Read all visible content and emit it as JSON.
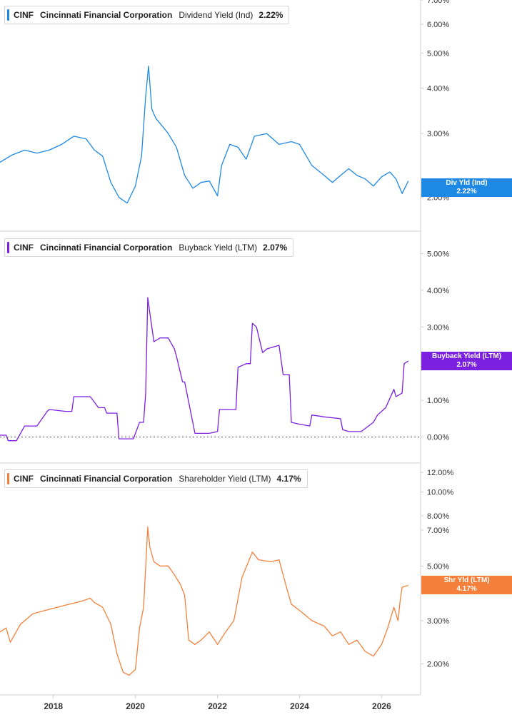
{
  "chart_data": [
    {
      "type": "line",
      "ticker": "CINF",
      "company": "Cincinnati Financial Corporation",
      "metric": "Dividend Yield (Ind)",
      "current_value": "2.22%",
      "tag_label": "Div Yld (Ind)",
      "tag_value": "2.22%",
      "color": "#1e88e5",
      "yscale": "log",
      "ylim": [
        1.8,
        7.0
      ],
      "y_ticks": [
        2,
        3,
        4,
        5,
        6,
        7
      ],
      "y_tick_labels": [
        "2.00%",
        "3.00%",
        "4.00%",
        "5.00%",
        "6.00%",
        "7.00%"
      ],
      "series": [
        {
          "x": [
            2016.7,
            2017.0,
            2017.3,
            2017.6,
            2017.9,
            2018.2,
            2018.5,
            2018.8,
            2019.0,
            2019.2,
            2019.4,
            2019.6,
            2019.8,
            2020.0,
            2020.15,
            2020.25,
            2020.32,
            2020.4,
            2020.5,
            2020.65,
            2020.8,
            2021.0,
            2021.2,
            2021.4,
            2021.6,
            2021.8,
            2022.0,
            2022.1,
            2022.3,
            2022.5,
            2022.7,
            2022.9,
            2023.2,
            2023.5,
            2023.8,
            2024.0,
            2024.3,
            2024.6,
            2024.8,
            2025.0,
            2025.2,
            2025.4,
            2025.6,
            2025.8,
            2026.0,
            2026.2,
            2026.35,
            2026.5,
            2026.65
          ],
          "y": [
            2.5,
            2.62,
            2.7,
            2.65,
            2.7,
            2.8,
            2.95,
            2.9,
            2.7,
            2.6,
            2.2,
            2.0,
            1.93,
            2.15,
            2.6,
            3.8,
            4.6,
            3.5,
            3.3,
            3.15,
            3.0,
            2.75,
            2.3,
            2.12,
            2.2,
            2.22,
            2.02,
            2.45,
            2.8,
            2.75,
            2.55,
            2.95,
            3.0,
            2.8,
            2.85,
            2.8,
            2.45,
            2.3,
            2.2,
            2.3,
            2.4,
            2.3,
            2.25,
            2.15,
            2.28,
            2.35,
            2.25,
            2.05,
            2.22
          ]
        }
      ]
    },
    {
      "type": "line",
      "ticker": "CINF",
      "company": "Cincinnati Financial Corporation",
      "metric": "Buyback Yield (LTM)",
      "current_value": "2.07%",
      "tag_label": "Buyback Yield (LTM)",
      "tag_value": "2.07%",
      "color": "#7b1fe0",
      "yscale": "linear",
      "ylim": [
        -0.3,
        5.3
      ],
      "reference_line": 0.0,
      "y_ticks": [
        0,
        1,
        2,
        3,
        4,
        5
      ],
      "y_tick_labels": [
        "0.00%",
        "1.00%",
        "2.00%",
        "3.00%",
        "4.00%",
        "5.00%"
      ],
      "series": [
        {
          "x": [
            2016.7,
            2016.85,
            2016.9,
            2017.1,
            2017.3,
            2017.35,
            2017.6,
            2017.85,
            2017.9,
            2018.3,
            2018.45,
            2018.5,
            2018.9,
            2019.1,
            2019.25,
            2019.3,
            2019.55,
            2019.6,
            2019.95,
            2020.1,
            2020.2,
            2020.25,
            2020.3,
            2020.35,
            2020.45,
            2020.6,
            2020.8,
            2020.95,
            2021.0,
            2021.15,
            2021.2,
            2021.45,
            2021.5,
            2021.8,
            2022.0,
            2022.05,
            2022.2,
            2022.45,
            2022.5,
            2022.7,
            2022.8,
            2022.85,
            2022.95,
            2023.1,
            2023.2,
            2023.5,
            2023.6,
            2023.75,
            2023.8,
            2024.0,
            2024.25,
            2024.3,
            2024.6,
            2025.0,
            2025.05,
            2025.2,
            2025.5,
            2025.8,
            2025.9,
            2026.1,
            2026.3,
            2026.35,
            2026.5,
            2026.55,
            2026.65
          ],
          "y": [
            0.05,
            0.05,
            -0.1,
            -0.1,
            0.3,
            0.3,
            0.3,
            0.7,
            0.75,
            0.7,
            0.7,
            1.1,
            1.1,
            0.8,
            0.8,
            0.65,
            0.65,
            -0.05,
            -0.05,
            0.4,
            0.4,
            1.2,
            3.8,
            3.4,
            2.6,
            2.7,
            2.7,
            2.4,
            2.2,
            1.5,
            1.5,
            0.1,
            0.1,
            0.1,
            0.15,
            0.75,
            0.75,
            0.75,
            1.9,
            2.0,
            2.0,
            3.1,
            3.0,
            2.3,
            2.4,
            2.5,
            1.7,
            1.7,
            0.4,
            0.35,
            0.3,
            0.6,
            0.55,
            0.5,
            0.2,
            0.15,
            0.15,
            0.4,
            0.6,
            0.8,
            1.3,
            1.1,
            1.2,
            2.0,
            2.07
          ]
        }
      ]
    },
    {
      "type": "line",
      "ticker": "CINF",
      "company": "Cincinnati Financial Corporation",
      "metric": "Shareholder Yield (LTM)",
      "current_value": "4.17%",
      "tag_label": "Shr Yld (LTM)",
      "tag_value": "4.17%",
      "color": "#f4803b",
      "yscale": "log",
      "ylim": [
        1.7,
        12.5
      ],
      "y_ticks": [
        2,
        3,
        5,
        7,
        8,
        10,
        12
      ],
      "y_tick_labels": [
        "2.00%",
        "3.00%",
        "5.00%",
        "7.00%",
        "8.00%",
        "10.00%",
        "12.00%"
      ],
      "series": [
        {
          "x": [
            2016.7,
            2016.85,
            2016.95,
            2017.2,
            2017.5,
            2017.8,
            2018.1,
            2018.4,
            2018.7,
            2018.9,
            2019.0,
            2019.2,
            2019.4,
            2019.55,
            2019.7,
            2019.85,
            2020.0,
            2020.1,
            2020.2,
            2020.3,
            2020.35,
            2020.45,
            2020.6,
            2020.8,
            2020.95,
            2021.1,
            2021.2,
            2021.3,
            2021.45,
            2021.6,
            2021.8,
            2022.0,
            2022.2,
            2022.4,
            2022.6,
            2022.85,
            2023.0,
            2023.3,
            2023.5,
            2023.7,
            2023.8,
            2024.0,
            2024.3,
            2024.6,
            2024.8,
            2025.0,
            2025.2,
            2025.4,
            2025.6,
            2025.8,
            2026.0,
            2026.15,
            2026.3,
            2026.4,
            2026.45,
            2026.5,
            2026.65
          ],
          "y": [
            2.7,
            2.8,
            2.45,
            2.9,
            3.2,
            3.3,
            3.4,
            3.5,
            3.6,
            3.7,
            3.55,
            3.4,
            2.9,
            2.2,
            1.85,
            1.8,
            1.9,
            2.8,
            3.4,
            7.2,
            6.0,
            5.2,
            5.0,
            5.0,
            4.6,
            4.2,
            3.8,
            2.5,
            2.4,
            2.5,
            2.7,
            2.4,
            2.7,
            3.0,
            4.5,
            5.7,
            5.3,
            5.2,
            5.3,
            4.0,
            3.5,
            3.3,
            3.0,
            2.85,
            2.6,
            2.7,
            2.4,
            2.5,
            2.25,
            2.15,
            2.4,
            2.8,
            3.4,
            3.0,
            3.6,
            4.1,
            4.17
          ]
        }
      ]
    }
  ],
  "x_axis": {
    "range": [
      2016.7,
      2026.95
    ],
    "ticks": [
      2018,
      2020,
      2022,
      2024,
      2026
    ],
    "tick_labels": [
      "2018",
      "2020",
      "2022",
      "2024",
      "2026"
    ]
  }
}
